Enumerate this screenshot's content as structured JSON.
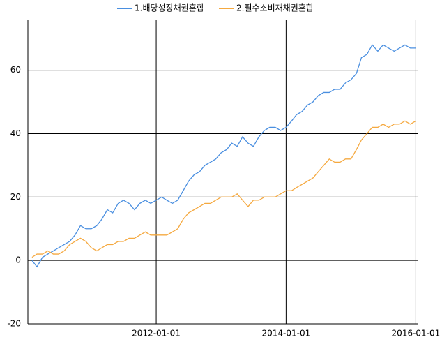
{
  "chart_data": {
    "type": "line",
    "x": [
      "2010-02-01",
      "2010-03-01",
      "2010-04-01",
      "2010-05-01",
      "2010-06-01",
      "2010-07-01",
      "2010-08-01",
      "2010-09-01",
      "2010-10-01",
      "2010-11-01",
      "2010-12-01",
      "2011-01-01",
      "2011-02-01",
      "2011-03-01",
      "2011-04-01",
      "2011-05-01",
      "2011-06-01",
      "2011-07-01",
      "2011-08-01",
      "2011-09-01",
      "2011-10-01",
      "2011-11-01",
      "2011-12-01",
      "2012-01-01",
      "2012-02-01",
      "2012-03-01",
      "2012-04-01",
      "2012-05-01",
      "2012-06-01",
      "2012-07-01",
      "2012-08-01",
      "2012-09-01",
      "2012-10-01",
      "2012-11-01",
      "2012-12-01",
      "2013-01-01",
      "2013-02-01",
      "2013-03-01",
      "2013-04-01",
      "2013-05-01",
      "2013-06-01",
      "2013-07-01",
      "2013-08-01",
      "2013-09-01",
      "2013-10-01",
      "2013-11-01",
      "2013-12-01",
      "2014-01-01",
      "2014-02-01",
      "2014-03-01",
      "2014-04-01",
      "2014-05-01",
      "2014-06-01",
      "2014-07-01",
      "2014-08-01",
      "2014-09-01",
      "2014-10-01",
      "2014-11-01",
      "2014-12-01",
      "2015-01-01",
      "2015-02-01",
      "2015-03-01",
      "2015-04-01",
      "2015-05-01",
      "2015-06-01",
      "2015-07-01",
      "2015-08-01",
      "2015-09-01",
      "2015-10-01",
      "2015-11-01",
      "2015-12-01",
      "2016-01-01"
    ],
    "series": [
      {
        "name": "1.배당성장채권혼합",
        "color": "#4a8fe0",
        "values": [
          0,
          -2,
          1,
          2,
          3,
          4,
          5,
          6,
          8,
          11,
          10,
          10,
          11,
          13,
          16,
          15,
          18,
          19,
          18,
          16,
          18,
          19,
          18,
          19,
          20,
          19,
          18,
          19,
          22,
          25,
          27,
          28,
          30,
          31,
          32,
          34,
          35,
          37,
          36,
          39,
          37,
          36,
          39,
          41,
          42,
          42,
          41,
          42,
          44,
          46,
          47,
          49,
          50,
          52,
          53,
          53,
          54,
          54,
          56,
          57,
          59,
          64,
          65,
          68,
          66,
          68,
          67,
          66,
          67,
          68,
          67,
          67
        ]
      },
      {
        "name": "2.필수소비재채권혼합",
        "color": "#f5a940",
        "values": [
          1,
          2,
          2,
          3,
          2,
          2,
          3,
          5,
          6,
          7,
          6,
          4,
          3,
          4,
          5,
          5,
          6,
          6,
          7,
          7,
          8,
          9,
          8,
          8,
          8,
          8,
          9,
          10,
          13,
          15,
          16,
          17,
          18,
          18,
          19,
          20,
          20,
          20,
          21,
          19,
          17,
          19,
          19,
          20,
          20,
          20,
          21,
          22,
          22,
          23,
          24,
          25,
          26,
          28,
          30,
          32,
          31,
          31,
          32,
          32,
          35,
          38,
          40,
          42,
          42,
          43,
          42,
          43,
          43,
          44,
          43,
          44
        ]
      }
    ],
    "xlim": [
      "2010-01-01",
      "2016-01-15"
    ],
    "xticks": [
      "2012-01-01",
      "2014-01-01",
      "2016-01-01"
    ],
    "ylim": [
      -20,
      76
    ],
    "yticks": [
      -20,
      0,
      20,
      40,
      60
    ],
    "grid": true
  }
}
